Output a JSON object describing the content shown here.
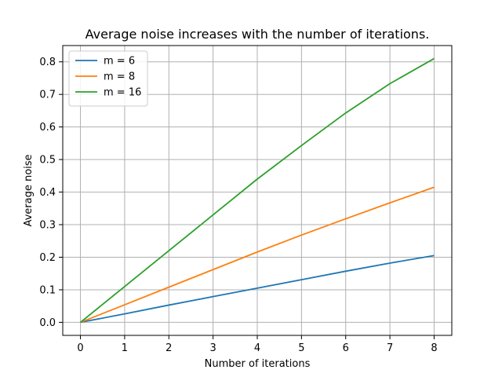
{
  "chart_data": {
    "type": "line",
    "title": "Average noise increases with the number of iterations.",
    "xlabel": "Number of iterations",
    "ylabel": "Average noise",
    "xlim": [
      -0.4,
      8.4
    ],
    "ylim": [
      -0.04,
      0.85
    ],
    "x_ticks": [
      0,
      1,
      2,
      3,
      4,
      5,
      6,
      7,
      8
    ],
    "y_ticks": [
      0.0,
      0.1,
      0.2,
      0.3,
      0.4,
      0.5,
      0.6,
      0.7,
      0.8
    ],
    "x_tick_labels": [
      "0",
      "1",
      "2",
      "3",
      "4",
      "5",
      "6",
      "7",
      "8"
    ],
    "y_tick_labels": [
      "0.0",
      "0.1",
      "0.2",
      "0.3",
      "0.4",
      "0.5",
      "0.6",
      "0.7",
      "0.8"
    ],
    "grid": true,
    "legend_position": "top-left",
    "x": [
      0,
      1,
      2,
      3,
      4,
      5,
      6,
      7,
      8
    ],
    "series": [
      {
        "name": "m = 6",
        "color": "#1f77b4",
        "values": [
          0.0,
          0.026,
          0.053,
          0.079,
          0.105,
          0.131,
          0.157,
          0.182,
          0.205
        ]
      },
      {
        "name": "m = 8",
        "color": "#ff7f0e",
        "values": [
          0.0,
          0.054,
          0.108,
          0.162,
          0.216,
          0.268,
          0.318,
          0.367,
          0.415
        ]
      },
      {
        "name": "m = 16",
        "color": "#2ca02c",
        "values": [
          0.0,
          0.11,
          0.22,
          0.33,
          0.44,
          0.543,
          0.643,
          0.733,
          0.81
        ]
      }
    ]
  }
}
